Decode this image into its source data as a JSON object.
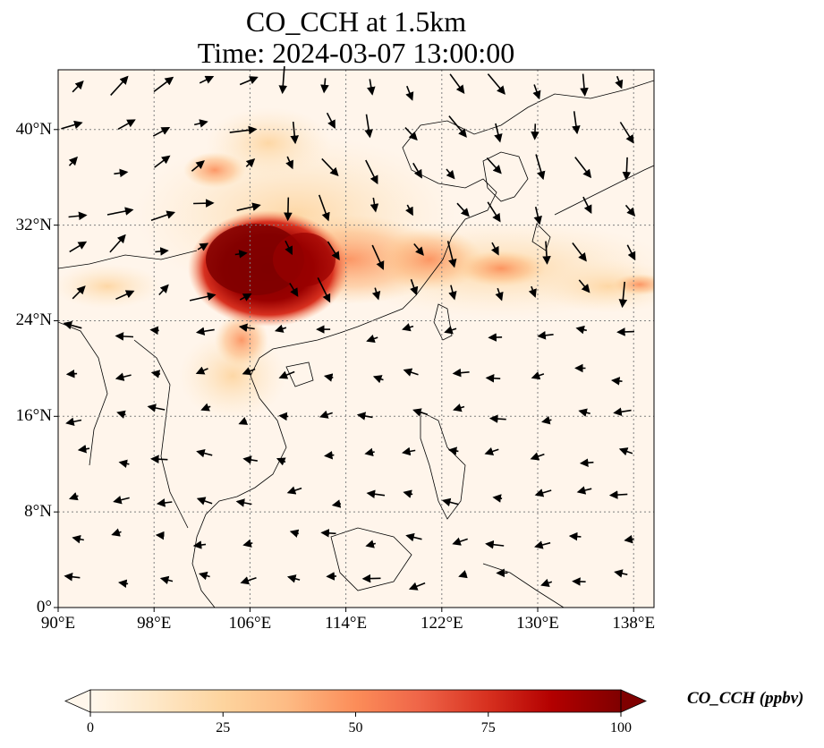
{
  "title_line1": "CO_CCH at 1.5km",
  "title_line2": "Time: 2024-03-07 13:00:00",
  "map": {
    "lat_ticks": [
      "0°",
      "8°N",
      "16°N",
      "24°N",
      "32°N",
      "40°N"
    ],
    "lon_ticks": [
      "90°E",
      "98°E",
      "106°E",
      "114°E",
      "122°E",
      "130°E",
      "138°E"
    ],
    "lat_values": [
      0,
      8,
      16,
      24,
      32,
      40
    ],
    "lon_values": [
      90,
      98,
      106,
      114,
      122,
      130,
      138
    ],
    "extent": {
      "lon_min": 90,
      "lon_max": 139.7,
      "lat_min": 0,
      "lat_max": 45
    },
    "gridline_color": "#808080",
    "background_color": "#fff5eb"
  },
  "colorbar": {
    "label": "CO_CCH (ppbv)",
    "ticks": [
      "0",
      "25",
      "50",
      "75",
      "100"
    ],
    "tick_values": [
      0,
      25,
      50,
      75,
      100
    ],
    "range": [
      0,
      100
    ],
    "colormap": "OrRd",
    "extend": "both"
  }
}
